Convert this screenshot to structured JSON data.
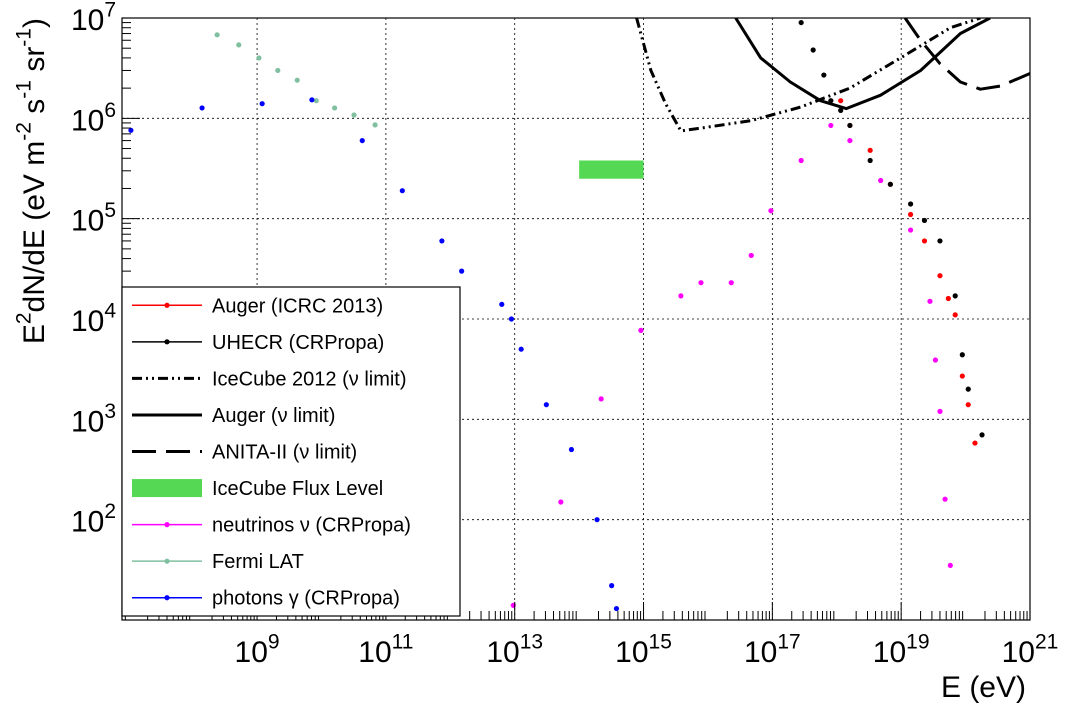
{
  "chart_data": {
    "type": "scatter",
    "xlabel": "E (eV)",
    "ylabel": "E^{2}dN/dE (eV m^{-2} s^{-1} sr^{-1})",
    "log_x": true,
    "log_y": true,
    "grid": true,
    "legend": "lower left",
    "xlim": [
      8000000.0,
      1e+21
    ],
    "ylim": [
      10,
      10000000.0
    ],
    "xticks": [
      {
        "value": 1000000000.0,
        "label": "10^9"
      },
      {
        "value": 100000000000.0,
        "label": "10^11"
      },
      {
        "value": 10000000000000.0,
        "label": "10^13"
      },
      {
        "value": 1000000000000000.0,
        "label": "10^15"
      },
      {
        "value": 1e+17,
        "label": "10^17"
      },
      {
        "value": 1e+19,
        "label": "10^19"
      },
      {
        "value": 1e+21,
        "label": "10^21"
      }
    ],
    "yticks": [
      {
        "value": 100,
        "label": "10^2"
      },
      {
        "value": 1000,
        "label": "10^3"
      },
      {
        "value": 10000,
        "label": "10^4"
      },
      {
        "value": 100000,
        "label": "10^5"
      },
      {
        "value": 1000000,
        "label": "10^6"
      },
      {
        "value": 10000000,
        "label": "10^7"
      }
    ],
    "series": [
      {
        "name": "Auger (ICRC 2013)",
        "color": "#ff0000",
        "style": "points",
        "x": [
          1.15e+18,
          1.6e+18,
          3.3e+18,
          6.8e+18,
          1.4e+19,
          2.3e+19,
          4e+19,
          5.4e+19,
          6.9e+19,
          8.9e+19,
          1.1e+20,
          1.4e+20
        ],
        "values": [
          1500000.0,
          850000.0,
          480000.0,
          220000.0,
          110000.0,
          60000.0,
          27000.0,
          16000.0,
          11000.0,
          2700.0,
          1400.0,
          580
        ]
      },
      {
        "name": "UHECR (CRPropa)",
        "color": "#000000",
        "style": "points",
        "x": [
          2.8e+17,
          4.3e+17,
          6.3e+17,
          8.1e+17,
          1.15e+18,
          1.6e+18,
          3.3e+18,
          6.8e+18,
          1.4e+19,
          2.3e+19,
          4e+19,
          6.9e+19,
          8.9e+19,
          1.1e+20,
          1.8e+20
        ],
        "values": [
          9000000.0,
          4800000.0,
          2700000.0,
          1500000.0,
          1200000.0,
          850000.0,
          380000.0,
          220000.0,
          140000.0,
          96000.0,
          60000.0,
          17000.0,
          4400.0,
          2000.0,
          700
        ]
      },
      {
        "name": "IceCube 2012 (ν limit)",
        "color": "#000000",
        "style": "dashdot",
        "x": [
          780000000000000.0,
          1300000000000000.0,
          2200000000000000.0,
          3800000000000000.0,
          7800000000000000.0,
          4.7e+16,
          2.8e+17,
          1.6e+18,
          9.8e+18,
          5.8e+19,
          1.7e+20
        ],
        "values": [
          10000000.0,
          3000000.0,
          1400000.0,
          750000.0,
          800000.0,
          950000.0,
          1300000.0,
          2000000.0,
          4000000.0,
          8000000.0,
          10000000.0
        ]
      },
      {
        "name": "Auger (ν limit)",
        "color": "#000000",
        "style": "solid",
        "x": [
          2.7e+16,
          6.6e+16,
          1.9e+17,
          5.6e+17,
          1.4e+18,
          4.8e+18,
          2e+19,
          8.3e+19,
          2.4e+20
        ],
        "values": [
          10000000.0,
          4000000.0,
          2300000.0,
          1500000.0,
          1250000.0,
          1700000.0,
          3000000.0,
          7000000.0,
          10000000.0
        ]
      },
      {
        "name": "ANITA-II (ν limit)",
        "color": "#000000",
        "style": "dashed",
        "x": [
          1.15e+19,
          2e+19,
          4e+19,
          8.3e+19,
          1.7e+20,
          3.5e+20,
          1e+21
        ],
        "values": [
          10000000.0,
          6000000.0,
          3500000.0,
          2300000.0,
          1950000.0,
          2100000.0,
          2800000.0
        ]
      },
      {
        "name": "IceCube Flux Level",
        "color": "#55d955",
        "style": "box",
        "x": [
          100000000000000.0,
          1000000000000000.0
        ],
        "values": [
          250000.0,
          380000.0
        ]
      },
      {
        "name": "neutrinos ν (CRPropa)",
        "color": "#ff00ff",
        "style": "points",
        "x": [
          9500000000000.0,
          52000000000000.0,
          220000000000000.0,
          910000000000000.0,
          3800000000000000.0,
          7800000000000000.0,
          2.3e+16,
          4.7e+16,
          9.5e+16,
          2.8e+17,
          8.1e+17,
          1.6e+18,
          4.8e+18,
          1.4e+19,
          2.8e+19,
          3.4e+19,
          4e+19,
          4.8e+19,
          5.8e+19
        ],
        "values": [
          14,
          150,
          1600,
          7700,
          17000.0,
          23000.0,
          23000.0,
          43000.0,
          120000.0,
          380000.0,
          850000.0,
          600000.0,
          240000.0,
          77000.0,
          15000.0,
          3900.0,
          1200.0,
          160,
          35
        ]
      },
      {
        "name": "Fermi LAT",
        "color": "#80c0a0",
        "style": "points",
        "x": [
          240000000.0,
          520000000.0,
          1070000000.0,
          2100000000.0,
          4200000000.0,
          8300000000.0,
          16000000000.0,
          32000000000.0,
          68000000000.0
        ],
        "values": [
          6800000.0,
          5400000.0,
          4000000.0,
          3000000.0,
          2400000.0,
          1500000.0,
          1270000.0,
          1080000.0,
          860000.0
        ]
      },
      {
        "name": "photons γ (CRPropa)",
        "color": "#0000ff",
        "style": "points",
        "x": [
          11000000.0,
          140000000.0,
          1200000000.0,
          7100000000.0,
          43000000000.0,
          180000000000.0,
          740000000000.0,
          1500000000000.0,
          6300000000000.0,
          8900000000000.0,
          12600000000000.0,
          31000000000000.0,
          76000000000000.0,
          190000000000000.0,
          320000000000000.0,
          380000000000000.0
        ],
        "values": [
          760000.0,
          1270000.0,
          1400000.0,
          1530000.0,
          600000.0,
          190000.0,
          60000.0,
          30000.0,
          14000.0,
          10000.0,
          5000.0,
          1400.0,
          500,
          100,
          22,
          13
        ]
      }
    ]
  }
}
